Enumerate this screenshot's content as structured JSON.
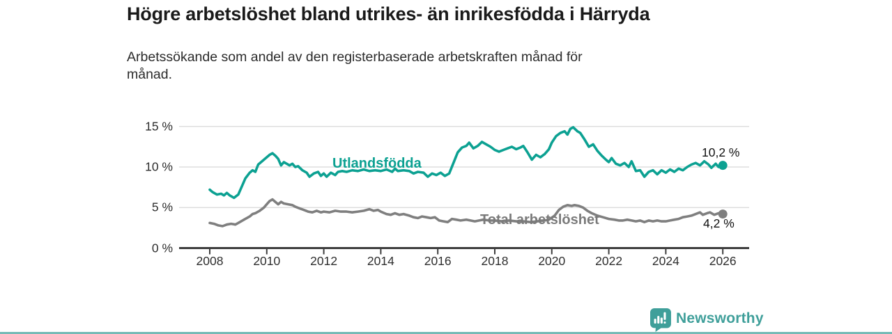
{
  "header": {
    "title": "Högre arbetslöshet bland utrikes- än inrikesfödda i Härryda",
    "subtitle_lines": [
      "Arbetssökande som andel av den registerbaserade arbetskraften månad för",
      "månad."
    ]
  },
  "branding": {
    "name": "Newsworthy",
    "logo_icon": "newsworthy-logo-icon",
    "accent_color": "#3f9f9a"
  },
  "colors": {
    "teal_line": "#0ca192",
    "gray_line": "#7f7f7f",
    "gridline": "#d8d8d8",
    "axis": "#3d3d3d",
    "title_text": "#1a1a1a"
  },
  "chart_data": {
    "type": "line",
    "title": "Högre arbetslöshet bland utrikes- än inrikesfödda i Härryda",
    "subtitle": "Arbetssökande som andel av den registerbaserade arbetskraften månad för månad.",
    "xlabel": "",
    "ylabel": "",
    "ylim": [
      0,
      15
    ],
    "xlim": [
      2007,
      2026.9
    ],
    "grid": true,
    "legend_position": "inline-labels",
    "y_ticks": [
      {
        "value": 0,
        "label": "0 %"
      },
      {
        "value": 5,
        "label": "5 %"
      },
      {
        "value": 10,
        "label": "10 %"
      },
      {
        "value": 15,
        "label": "15 %"
      }
    ],
    "x_ticks": [
      {
        "value": 2008,
        "label": "2008"
      },
      {
        "value": 2010,
        "label": "2010"
      },
      {
        "value": 2012,
        "label": "2012"
      },
      {
        "value": 2014,
        "label": "2014"
      },
      {
        "value": 2016,
        "label": "2016"
      },
      {
        "value": 2018,
        "label": "2018"
      },
      {
        "value": 2020,
        "label": "2020"
      },
      {
        "value": 2022,
        "label": "2022"
      },
      {
        "value": 2024,
        "label": "2024"
      },
      {
        "value": 2026,
        "label": "2026"
      }
    ],
    "series": [
      {
        "name": "Utlandsfödda",
        "color": "#0ca192",
        "end_label": "10,2 %",
        "last_value": 10.2,
        "points": [
          [
            2008.0,
            7.2
          ],
          [
            2008.1,
            6.9
          ],
          [
            2008.25,
            6.6
          ],
          [
            2008.4,
            6.7
          ],
          [
            2008.5,
            6.5
          ],
          [
            2008.6,
            6.8
          ],
          [
            2008.7,
            6.5
          ],
          [
            2008.85,
            6.2
          ],
          [
            2009.0,
            6.6
          ],
          [
            2009.1,
            7.4
          ],
          [
            2009.25,
            8.6
          ],
          [
            2009.4,
            9.3
          ],
          [
            2009.5,
            9.6
          ],
          [
            2009.6,
            9.4
          ],
          [
            2009.7,
            10.3
          ],
          [
            2009.8,
            10.6
          ],
          [
            2009.9,
            10.9
          ],
          [
            2010.0,
            11.2
          ],
          [
            2010.1,
            11.5
          ],
          [
            2010.2,
            11.7
          ],
          [
            2010.3,
            11.4
          ],
          [
            2010.4,
            11.0
          ],
          [
            2010.5,
            10.2
          ],
          [
            2010.6,
            10.6
          ],
          [
            2010.7,
            10.4
          ],
          [
            2010.8,
            10.2
          ],
          [
            2010.9,
            10.4
          ],
          [
            2011.0,
            10.0
          ],
          [
            2011.1,
            10.1
          ],
          [
            2011.25,
            9.6
          ],
          [
            2011.4,
            9.3
          ],
          [
            2011.5,
            8.8
          ],
          [
            2011.65,
            9.2
          ],
          [
            2011.8,
            9.4
          ],
          [
            2011.9,
            8.9
          ],
          [
            2012.0,
            9.2
          ],
          [
            2012.1,
            8.8
          ],
          [
            2012.25,
            9.3
          ],
          [
            2012.4,
            9.0
          ],
          [
            2012.5,
            9.4
          ],
          [
            2012.65,
            9.5
          ],
          [
            2012.8,
            9.4
          ],
          [
            2013.0,
            9.6
          ],
          [
            2013.2,
            9.5
          ],
          [
            2013.4,
            9.7
          ],
          [
            2013.6,
            9.5
          ],
          [
            2013.8,
            9.6
          ],
          [
            2014.0,
            9.5
          ],
          [
            2014.2,
            9.7
          ],
          [
            2014.4,
            9.4
          ],
          [
            2014.5,
            9.8
          ],
          [
            2014.6,
            9.5
          ],
          [
            2014.8,
            9.6
          ],
          [
            2015.0,
            9.5
          ],
          [
            2015.15,
            9.2
          ],
          [
            2015.3,
            9.4
          ],
          [
            2015.5,
            9.3
          ],
          [
            2015.65,
            8.8
          ],
          [
            2015.8,
            9.2
          ],
          [
            2015.95,
            9.0
          ],
          [
            2016.1,
            9.3
          ],
          [
            2016.25,
            8.9
          ],
          [
            2016.4,
            9.2
          ],
          [
            2016.55,
            10.5
          ],
          [
            2016.7,
            11.8
          ],
          [
            2016.85,
            12.4
          ],
          [
            2017.0,
            12.6
          ],
          [
            2017.1,
            13.0
          ],
          [
            2017.25,
            12.3
          ],
          [
            2017.4,
            12.6
          ],
          [
            2017.55,
            13.1
          ],
          [
            2017.7,
            12.8
          ],
          [
            2017.85,
            12.5
          ],
          [
            2018.0,
            12.1
          ],
          [
            2018.15,
            11.9
          ],
          [
            2018.3,
            12.1
          ],
          [
            2018.45,
            12.3
          ],
          [
            2018.6,
            12.5
          ],
          [
            2018.75,
            12.2
          ],
          [
            2018.9,
            12.4
          ],
          [
            2019.0,
            12.6
          ],
          [
            2019.15,
            11.8
          ],
          [
            2019.3,
            10.9
          ],
          [
            2019.45,
            11.5
          ],
          [
            2019.6,
            11.2
          ],
          [
            2019.75,
            11.6
          ],
          [
            2019.9,
            12.2
          ],
          [
            2020.0,
            13.0
          ],
          [
            2020.15,
            13.8
          ],
          [
            2020.3,
            14.2
          ],
          [
            2020.45,
            14.4
          ],
          [
            2020.55,
            14.0
          ],
          [
            2020.65,
            14.7
          ],
          [
            2020.75,
            14.9
          ],
          [
            2020.9,
            14.4
          ],
          [
            2021.0,
            14.2
          ],
          [
            2021.15,
            13.4
          ],
          [
            2021.3,
            12.5
          ],
          [
            2021.45,
            12.8
          ],
          [
            2021.6,
            12.0
          ],
          [
            2021.75,
            11.4
          ],
          [
            2021.9,
            10.9
          ],
          [
            2022.0,
            10.6
          ],
          [
            2022.1,
            11.1
          ],
          [
            2022.25,
            10.4
          ],
          [
            2022.4,
            10.2
          ],
          [
            2022.55,
            10.5
          ],
          [
            2022.7,
            10.0
          ],
          [
            2022.8,
            10.7
          ],
          [
            2022.95,
            9.5
          ],
          [
            2023.1,
            9.6
          ],
          [
            2023.25,
            8.8
          ],
          [
            2023.4,
            9.4
          ],
          [
            2023.55,
            9.6
          ],
          [
            2023.7,
            9.1
          ],
          [
            2023.85,
            9.6
          ],
          [
            2024.0,
            9.3
          ],
          [
            2024.15,
            9.7
          ],
          [
            2024.3,
            9.4
          ],
          [
            2024.45,
            9.8
          ],
          [
            2024.6,
            9.6
          ],
          [
            2024.75,
            10.0
          ],
          [
            2024.9,
            10.3
          ],
          [
            2025.05,
            10.5
          ],
          [
            2025.2,
            10.2
          ],
          [
            2025.35,
            10.7
          ],
          [
            2025.5,
            10.3
          ],
          [
            2025.6,
            9.9
          ],
          [
            2025.75,
            10.4
          ],
          [
            2025.85,
            10.0
          ],
          [
            2026.0,
            10.2
          ]
        ]
      },
      {
        "name": "Total arbetslöshet",
        "color": "#7f7f7f",
        "end_label": "4,2 %",
        "last_value": 4.2,
        "points": [
          [
            2008.0,
            3.1
          ],
          [
            2008.15,
            3.0
          ],
          [
            2008.3,
            2.8
          ],
          [
            2008.45,
            2.7
          ],
          [
            2008.6,
            2.9
          ],
          [
            2008.75,
            3.0
          ],
          [
            2008.9,
            2.9
          ],
          [
            2009.0,
            3.1
          ],
          [
            2009.2,
            3.5
          ],
          [
            2009.4,
            3.9
          ],
          [
            2009.5,
            4.2
          ],
          [
            2009.6,
            4.3
          ],
          [
            2009.75,
            4.6
          ],
          [
            2009.9,
            5.0
          ],
          [
            2010.0,
            5.4
          ],
          [
            2010.1,
            5.8
          ],
          [
            2010.2,
            6.0
          ],
          [
            2010.3,
            5.7
          ],
          [
            2010.4,
            5.4
          ],
          [
            2010.5,
            5.7
          ],
          [
            2010.6,
            5.5
          ],
          [
            2010.75,
            5.4
          ],
          [
            2010.9,
            5.3
          ],
          [
            2011.0,
            5.1
          ],
          [
            2011.15,
            4.9
          ],
          [
            2011.3,
            4.7
          ],
          [
            2011.45,
            4.5
          ],
          [
            2011.6,
            4.4
          ],
          [
            2011.75,
            4.6
          ],
          [
            2011.9,
            4.4
          ],
          [
            2012.0,
            4.5
          ],
          [
            2012.2,
            4.4
          ],
          [
            2012.4,
            4.6
          ],
          [
            2012.6,
            4.5
          ],
          [
            2012.8,
            4.5
          ],
          [
            2013.0,
            4.4
          ],
          [
            2013.2,
            4.5
          ],
          [
            2013.4,
            4.6
          ],
          [
            2013.6,
            4.8
          ],
          [
            2013.75,
            4.6
          ],
          [
            2013.9,
            4.7
          ],
          [
            2014.0,
            4.5
          ],
          [
            2014.2,
            4.2
          ],
          [
            2014.35,
            4.1
          ],
          [
            2014.5,
            4.3
          ],
          [
            2014.65,
            4.1
          ],
          [
            2014.8,
            4.2
          ],
          [
            2015.0,
            4.0
          ],
          [
            2015.15,
            3.8
          ],
          [
            2015.3,
            3.7
          ],
          [
            2015.45,
            3.9
          ],
          [
            2015.6,
            3.8
          ],
          [
            2015.75,
            3.7
          ],
          [
            2015.9,
            3.8
          ],
          [
            2016.05,
            3.4
          ],
          [
            2016.2,
            3.3
          ],
          [
            2016.35,
            3.2
          ],
          [
            2016.5,
            3.6
          ],
          [
            2016.65,
            3.5
          ],
          [
            2016.8,
            3.4
          ],
          [
            2017.0,
            3.5
          ],
          [
            2017.15,
            3.4
          ],
          [
            2017.3,
            3.3
          ],
          [
            2017.45,
            3.4
          ],
          [
            2017.6,
            3.5
          ],
          [
            2017.8,
            3.4
          ],
          [
            2018.0,
            3.4
          ],
          [
            2018.25,
            3.3
          ],
          [
            2018.5,
            3.4
          ],
          [
            2018.75,
            3.3
          ],
          [
            2019.0,
            3.3
          ],
          [
            2019.25,
            3.2
          ],
          [
            2019.5,
            3.3
          ],
          [
            2019.75,
            3.4
          ],
          [
            2019.9,
            3.5
          ],
          [
            2020.1,
            4.0
          ],
          [
            2020.25,
            4.7
          ],
          [
            2020.4,
            5.1
          ],
          [
            2020.55,
            5.3
          ],
          [
            2020.7,
            5.2
          ],
          [
            2020.8,
            5.3
          ],
          [
            2020.95,
            5.2
          ],
          [
            2021.1,
            5.0
          ],
          [
            2021.25,
            4.6
          ],
          [
            2021.4,
            4.3
          ],
          [
            2021.6,
            4.0
          ],
          [
            2021.8,
            3.8
          ],
          [
            2022.0,
            3.6
          ],
          [
            2022.2,
            3.5
          ],
          [
            2022.35,
            3.4
          ],
          [
            2022.5,
            3.4
          ],
          [
            2022.65,
            3.5
          ],
          [
            2022.8,
            3.4
          ],
          [
            2022.95,
            3.3
          ],
          [
            2023.1,
            3.4
          ],
          [
            2023.25,
            3.2
          ],
          [
            2023.4,
            3.4
          ],
          [
            2023.55,
            3.3
          ],
          [
            2023.7,
            3.4
          ],
          [
            2023.85,
            3.3
          ],
          [
            2024.0,
            3.3
          ],
          [
            2024.15,
            3.4
          ],
          [
            2024.3,
            3.5
          ],
          [
            2024.45,
            3.6
          ],
          [
            2024.6,
            3.8
          ],
          [
            2024.75,
            3.9
          ],
          [
            2024.9,
            4.0
          ],
          [
            2025.05,
            4.2
          ],
          [
            2025.2,
            4.4
          ],
          [
            2025.3,
            4.1
          ],
          [
            2025.45,
            4.3
          ],
          [
            2025.55,
            4.4
          ],
          [
            2025.7,
            4.1
          ],
          [
            2025.85,
            4.3
          ],
          [
            2026.0,
            4.2
          ]
        ]
      }
    ]
  }
}
